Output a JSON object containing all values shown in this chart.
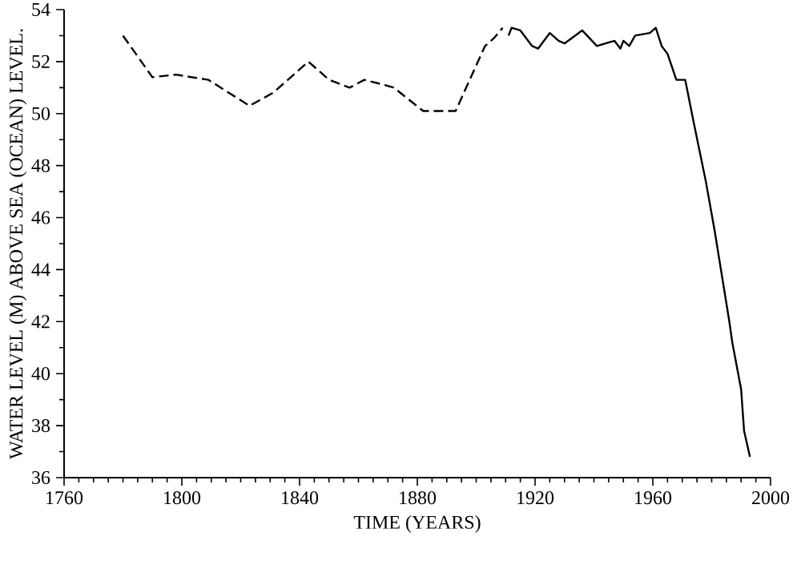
{
  "chart_data": {
    "type": "line",
    "xlabel": "TIME (YEARS)",
    "ylabel": "WATER LEVEL (M) ABOVE SEA (OCEAN) LEVEL.",
    "xlim": [
      1760,
      2000
    ],
    "xticks": [
      1760,
      1800,
      1840,
      1880,
      1920,
      1960,
      2000
    ],
    "ylim": [
      36,
      54
    ],
    "yticks": [
      36,
      38,
      40,
      42,
      44,
      46,
      48,
      50,
      52,
      54
    ],
    "marker": "none",
    "series": [
      {
        "color": "#000000",
        "line_style": "dashed",
        "x": [
          1780,
          1790,
          1798,
          1809,
          1823,
          1831,
          1843,
          1850,
          1857,
          1862,
          1869,
          1872,
          1882,
          1893,
          1903,
          1906,
          1909
        ],
        "values": [
          53.0,
          51.4,
          51.5,
          51.3,
          50.3,
          50.8,
          52.0,
          51.3,
          51.0,
          51.3,
          51.1,
          51.0,
          50.1,
          50.1,
          52.6,
          52.9,
          53.3
        ]
      },
      {
        "color": "#000000",
        "line_style": "solid",
        "x": [
          1911,
          1912,
          1915,
          1919,
          1921,
          1925,
          1928,
          1930,
          1936,
          1941,
          1944,
          1947,
          1949,
          1950,
          1952,
          1954,
          1959,
          1961,
          1963,
          1965,
          1968,
          1971,
          1974,
          1978,
          1981,
          1983,
          1986,
          1987,
          1990,
          1991,
          1993
        ],
        "values": [
          53.0,
          53.3,
          53.2,
          52.6,
          52.5,
          53.1,
          52.8,
          52.7,
          53.2,
          52.6,
          52.7,
          52.8,
          52.5,
          52.8,
          52.6,
          53.0,
          53.1,
          53.3,
          52.6,
          52.3,
          51.3,
          51.3,
          49.6,
          47.4,
          45.5,
          44.1,
          42.0,
          41.2,
          39.4,
          37.8,
          36.8
        ]
      }
    ]
  }
}
